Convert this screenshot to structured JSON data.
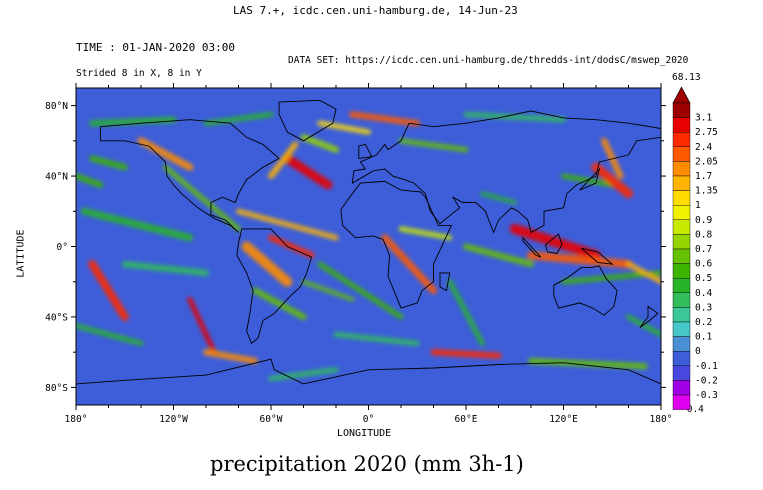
{
  "header": "LAS 7.+, icdc.cen.uni-hamburg.de, 14-Jun-23",
  "time_label": "TIME : 01-JAN-2020 03:00",
  "dataset_label": "DATA SET: https://icdc.cen.uni-hamburg.de/thredds-int/dodsC/mswep_2020",
  "strided_label": "Strided 8 in X, 8 in Y",
  "caption": "precipitation 2020 (mm 3h-1)",
  "chart_data": {
    "type": "heatmap",
    "title": "precipitation 2020 (mm 3h-1)",
    "xlabel": "LONGITUDE",
    "ylabel": "LATITUDE",
    "xlim": [
      -180,
      180
    ],
    "ylim": [
      -90,
      90
    ],
    "x_ticks": [
      {
        "value": -180,
        "label": "180°"
      },
      {
        "value": -120,
        "label": "120°W"
      },
      {
        "value": -60,
        "label": "60°W"
      },
      {
        "value": 0,
        "label": "0°"
      },
      {
        "value": 60,
        "label": "60°E"
      },
      {
        "value": 120,
        "label": "120°E"
      },
      {
        "value": 180,
        "label": "180°"
      }
    ],
    "y_ticks": [
      {
        "value": 80,
        "label": "80°N"
      },
      {
        "value": 40,
        "label": "40°N"
      },
      {
        "value": 0,
        "label": "0°"
      },
      {
        "value": -40,
        "label": "40°S"
      },
      {
        "value": -80,
        "label": "80°S"
      }
    ],
    "colorbar": {
      "max_label": "68.13",
      "min_label": "-0.4",
      "levels": [
        {
          "label": "3.1",
          "color": "#9c0000"
        },
        {
          "label": "2.75",
          "color": "#e80000"
        },
        {
          "label": "2.4",
          "color": "#ff2a00"
        },
        {
          "label": "2.05",
          "color": "#ff5a00"
        },
        {
          "label": "1.7",
          "color": "#ff8c00"
        },
        {
          "label": "1.35",
          "color": "#ffb400"
        },
        {
          "label": "1",
          "color": "#ffdc00"
        },
        {
          "label": "0.9",
          "color": "#f0f000"
        },
        {
          "label": "0.8",
          "color": "#c8e800"
        },
        {
          "label": "0.7",
          "color": "#96d400"
        },
        {
          "label": "0.6",
          "color": "#64c000"
        },
        {
          "label": "0.5",
          "color": "#3cb400"
        },
        {
          "label": "0.4",
          "color": "#28b428"
        },
        {
          "label": "0.3",
          "color": "#32be5a"
        },
        {
          "label": "0.2",
          "color": "#3cc896"
        },
        {
          "label": "0.1",
          "color": "#46c8c8"
        },
        {
          "label": "0",
          "color": "#4a8ed6"
        },
        {
          "label": "-0.1",
          "color": "#3d5ed8"
        },
        {
          "label": "-0.2",
          "color": "#4848e0"
        },
        {
          "label": "-0.3",
          "color": "#a000e6"
        },
        {
          "label": "-0.4",
          "color": "#e000f0"
        }
      ]
    },
    "background_color": "#3d5ed8"
  }
}
